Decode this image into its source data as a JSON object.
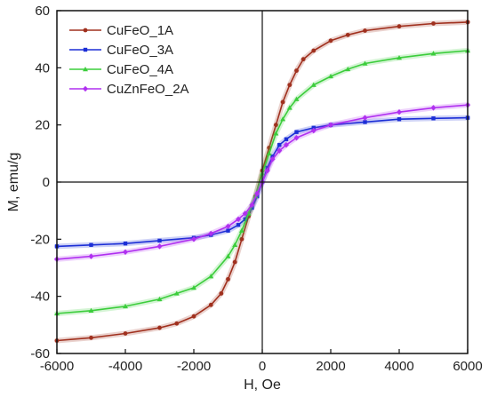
{
  "chart_data": {
    "type": "line",
    "title": "",
    "xlabel": "H, Oe",
    "ylabel": "M, emu/g",
    "xlim": [
      -6000,
      6000
    ],
    "ylim": [
      -60,
      60
    ],
    "xticks": [
      -6000,
      -4000,
      -2000,
      0,
      2000,
      4000,
      6000
    ],
    "yticks": [
      -60,
      -40,
      -20,
      0,
      20,
      40,
      60
    ],
    "xtick_labels": [
      "-6000",
      "-4000",
      "-2000",
      "0",
      "2000",
      "4000",
      "6000"
    ],
    "ytick_labels": [
      "-60",
      "-40",
      "-20",
      "0",
      "20",
      "40",
      "60"
    ],
    "grid": false,
    "zero_lines": true,
    "legend": {
      "placement": "top-left"
    },
    "series": [
      {
        "name": "CuFeO_1A",
        "color": "#a0301e",
        "marker": "circle",
        "x": [
          -6000,
          -5000,
          -4000,
          -3000,
          -2500,
          -2000,
          -1500,
          -1200,
          -1000,
          -800,
          -600,
          -400,
          -200,
          0,
          200,
          400,
          600,
          800,
          1000,
          1200,
          1500,
          2000,
          2500,
          3000,
          4000,
          5000,
          6000
        ],
        "y": [
          -55.5,
          -54.5,
          -53,
          -51,
          -49.5,
          -47,
          -43,
          -39,
          -34,
          -28,
          -20,
          -12,
          -5,
          4,
          12,
          20,
          28,
          34,
          39,
          43,
          46,
          49.5,
          51.5,
          53,
          54.5,
          55.5,
          56
        ]
      },
      {
        "name": "CuFeO_3A",
        "color": "#1c2fd6",
        "marker": "square",
        "x": [
          -6000,
          -5000,
          -4000,
          -3000,
          -2000,
          -1500,
          -1000,
          -700,
          -500,
          -300,
          -150,
          0,
          150,
          300,
          500,
          700,
          1000,
          1500,
          2000,
          3000,
          4000,
          5000,
          6000
        ],
        "y": [
          -22.5,
          -22,
          -21.5,
          -20.5,
          -19.5,
          -18.5,
          -17,
          -15,
          -13,
          -9,
          -5,
          0,
          5,
          9,
          13,
          15,
          17.5,
          19,
          20,
          21,
          22,
          22.3,
          22.5
        ]
      },
      {
        "name": "CuFeO_4A",
        "color": "#3ccd3c",
        "marker": "triangle",
        "x": [
          -6000,
          -5000,
          -4000,
          -3000,
          -2500,
          -2000,
          -1500,
          -1000,
          -800,
          -600,
          -400,
          -200,
          0,
          200,
          400,
          600,
          800,
          1000,
          1500,
          2000,
          2500,
          3000,
          4000,
          5000,
          6000
        ],
        "y": [
          -46,
          -45,
          -43.5,
          -41,
          -39,
          -37,
          -33,
          -26,
          -22,
          -17,
          -11,
          -5,
          3,
          10,
          17,
          22,
          26,
          29,
          34,
          37,
          39.5,
          41.5,
          43.5,
          45,
          46
        ]
      },
      {
        "name": "CuZnFeO_2A",
        "color": "#b030f0",
        "marker": "diamond",
        "x": [
          -6000,
          -5000,
          -4000,
          -3000,
          -2000,
          -1500,
          -1000,
          -700,
          -500,
          -300,
          -150,
          0,
          150,
          300,
          500,
          700,
          1000,
          1500,
          2000,
          3000,
          4000,
          5000,
          6000
        ],
        "y": [
          -27,
          -26,
          -24.5,
          -22.5,
          -20,
          -18,
          -15.5,
          -13,
          -11,
          -8,
          -4,
          0,
          4,
          8,
          11,
          13,
          15.5,
          18,
          20,
          22.5,
          24.5,
          26,
          27
        ]
      }
    ]
  }
}
